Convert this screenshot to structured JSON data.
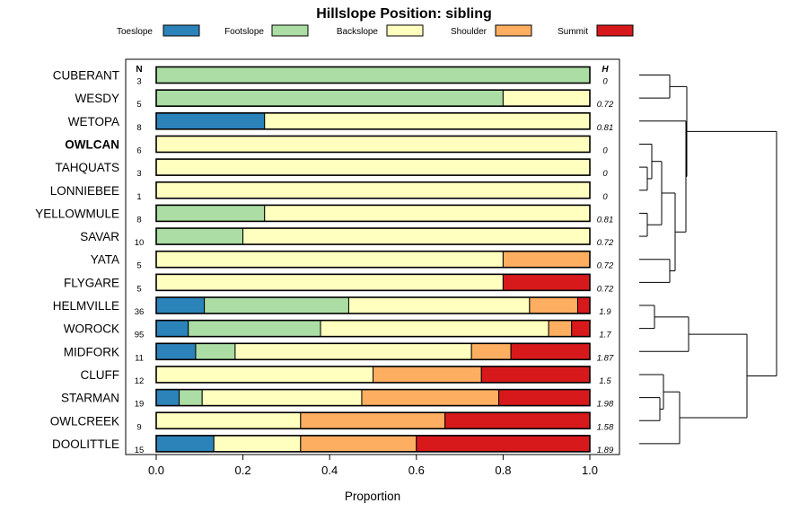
{
  "chart_data": {
    "type": "stacked-bar-horizontal",
    "title": "Hillslope Position: sibling",
    "xlabel": "Proportion",
    "xlim": [
      0,
      1
    ],
    "xticks": [
      "0.0",
      "0.2",
      "0.4",
      "0.6",
      "0.8",
      "1.0"
    ],
    "n_header": "N",
    "h_header": "H",
    "legend": [
      {
        "name": "Toeslope",
        "color": "#2B83BA"
      },
      {
        "name": "Footslope",
        "color": "#ABDDA4"
      },
      {
        "name": "Backslope",
        "color": "#FFFFBF"
      },
      {
        "name": "Shoulder",
        "color": "#FDAE61"
      },
      {
        "name": "Summit",
        "color": "#D7191C"
      }
    ],
    "rows": [
      {
        "label": "CUBERANT",
        "n": "3",
        "h": "0",
        "bold": false,
        "values": [
          0,
          1,
          0,
          0,
          0
        ]
      },
      {
        "label": "WESDY",
        "n": "5",
        "h": "0.72",
        "bold": false,
        "values": [
          0,
          0.8,
          0.2,
          0,
          0
        ]
      },
      {
        "label": "WETOPA",
        "n": "8",
        "h": "0.81",
        "bold": false,
        "values": [
          0.25,
          0,
          0.75,
          0,
          0
        ]
      },
      {
        "label": "OWLCAN",
        "n": "6",
        "h": "0",
        "bold": true,
        "values": [
          0,
          0,
          1,
          0,
          0
        ]
      },
      {
        "label": "TAHQUATS",
        "n": "3",
        "h": "0",
        "bold": false,
        "values": [
          0,
          0,
          1,
          0,
          0
        ]
      },
      {
        "label": "LONNIEBEE",
        "n": "1",
        "h": "0",
        "bold": false,
        "values": [
          0,
          0,
          1,
          0,
          0
        ]
      },
      {
        "label": "YELLOWMULE",
        "n": "8",
        "h": "0.81",
        "bold": false,
        "values": [
          0,
          0.25,
          0.75,
          0,
          0
        ]
      },
      {
        "label": "SAVAR",
        "n": "10",
        "h": "0.72",
        "bold": false,
        "values": [
          0,
          0.2,
          0.8,
          0,
          0
        ]
      },
      {
        "label": "YATA",
        "n": "5",
        "h": "0.72",
        "bold": false,
        "values": [
          0,
          0,
          0.8,
          0.2,
          0
        ]
      },
      {
        "label": "FLYGARE",
        "n": "5",
        "h": "0.72",
        "bold": false,
        "values": [
          0,
          0,
          0.8,
          0,
          0.2
        ]
      },
      {
        "label": "HELMVILLE",
        "n": "36",
        "h": "1.9",
        "bold": false,
        "values": [
          0.111,
          0.333,
          0.417,
          0.111,
          0.028
        ]
      },
      {
        "label": "WOROCK",
        "n": "95",
        "h": "1.7",
        "bold": false,
        "values": [
          0.074,
          0.305,
          0.526,
          0.053,
          0.042
        ]
      },
      {
        "label": "MIDFORK",
        "n": "11",
        "h": "1.87",
        "bold": false,
        "values": [
          0.091,
          0.091,
          0.545,
          0.091,
          0.182
        ]
      },
      {
        "label": "CLUFF",
        "n": "12",
        "h": "1.5",
        "bold": false,
        "values": [
          0,
          0,
          0.5,
          0.25,
          0.25
        ]
      },
      {
        "label": "STARMAN",
        "n": "19",
        "h": "1.98",
        "bold": false,
        "values": [
          0.053,
          0.053,
          0.368,
          0.316,
          0.21
        ]
      },
      {
        "label": "OWLCREEK",
        "n": "9",
        "h": "1.58",
        "bold": false,
        "values": [
          0,
          0,
          0.333,
          0.333,
          0.334
        ]
      },
      {
        "label": "DOOLITTLE",
        "n": "15",
        "h": "1.89",
        "bold": false,
        "values": [
          0.133,
          0,
          0.2,
          0.267,
          0.4
        ]
      }
    ],
    "dendrogram": {
      "id": "root",
      "children": [
        {
          "id": "c1",
          "children": [
            {
              "id": "c1a",
              "children": [
                {
                  "leaf": 0
                },
                {
                  "leaf": 1
                }
              ]
            },
            {
              "id": "c1b",
              "children": [
                {
                  "leaf": 2
                },
                {
                  "id": "c1b2",
                  "children": [
                    {
                      "id": "c1b2a",
                      "children": [
                        {
                          "id": "c1b2a1",
                          "children": [
                            {
                              "leaf": 3
                            },
                            {
                              "id": "c1b2a1b",
                              "children": [
                                {
                                  "leaf": 4
                                },
                                {
                                  "leaf": 5
                                }
                              ]
                            }
                          ]
                        },
                        {
                          "id": "c1b2a2",
                          "children": [
                            {
                              "leaf": 6
                            },
                            {
                              "leaf": 7
                            }
                          ]
                        }
                      ]
                    },
                    {
                      "id": "c1b2b",
                      "children": [
                        {
                          "leaf": 8
                        },
                        {
                          "leaf": 9
                        }
                      ]
                    }
                  ]
                }
              ]
            }
          ]
        },
        {
          "id": "c2",
          "children": [
            {
              "id": "c2a",
              "children": [
                {
                  "id": "c2a1",
                  "children": [
                    {
                      "leaf": 10
                    },
                    {
                      "leaf": 11
                    }
                  ]
                },
                {
                  "leaf": 12
                }
              ]
            },
            {
              "id": "c2b",
              "children": [
                {
                  "id": "c2b1",
                  "children": [
                    {
                      "leaf": 13
                    },
                    {
                      "id": "c2b1b",
                      "children": [
                        {
                          "leaf": 14
                        },
                        {
                          "leaf": 15
                        }
                      ]
                    }
                  ]
                },
                {
                  "leaf": 16
                }
              ]
            }
          ]
        }
      ]
    }
  }
}
